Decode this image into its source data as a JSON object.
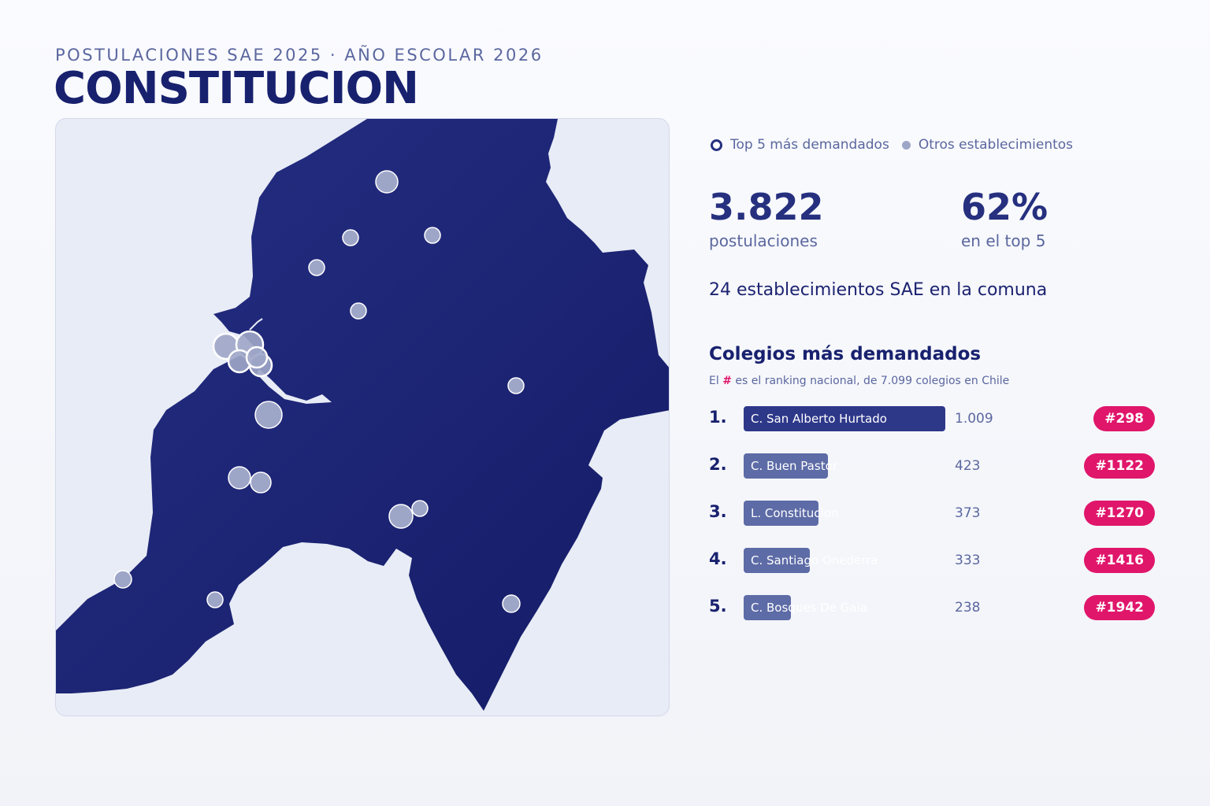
{
  "header": {
    "subtitle": "POSTULACIONES SAE 2025 · AÑO ESCOLAR 2026",
    "title": "CONSTITUCION"
  },
  "legend": {
    "top5_label": "Top 5 más demandados",
    "others_label": "Otros establecimientos"
  },
  "stats": {
    "applications_value": "3.822",
    "applications_label": "postulaciones",
    "top5_share_value": "62%",
    "top5_share_label": "en el top 5"
  },
  "establishments_text": "24 establecimientos SAE en la comuna",
  "ranking": {
    "title": "Colegios más demandados",
    "note_prefix": "El",
    "note_hash": "#",
    "note_suffix": "es el ranking nacional, de 7.099 colegios en Chile",
    "schools": [
      {
        "position": "1.",
        "name": "C. San Alberto Hurtado",
        "applications": 1009,
        "applications_label": "1.009",
        "national_rank": "#298"
      },
      {
        "position": "2.",
        "name": "C. Buen Pastor",
        "applications": 423,
        "applications_label": "423",
        "national_rank": "#1122"
      },
      {
        "position": "3.",
        "name": "L. Constitucion",
        "applications": 373,
        "applications_label": "373",
        "national_rank": "#1270"
      },
      {
        "position": "4.",
        "name": "C. Santiago Onederra",
        "applications": 333,
        "applications_label": "333",
        "national_rank": "#1416"
      },
      {
        "position": "5.",
        "name": "C. Bosques De Gaia",
        "applications": 238,
        "applications_label": "238",
        "national_rank": "#1942"
      }
    ]
  },
  "colors": {
    "commune_fill": "#1f2677",
    "map_background": "#e8ecf6",
    "marker_fill": "#9ea6c8",
    "top5_bar": "#2e3889",
    "other_bar": "#5d6ba6",
    "badge": "#e0166b"
  }
}
